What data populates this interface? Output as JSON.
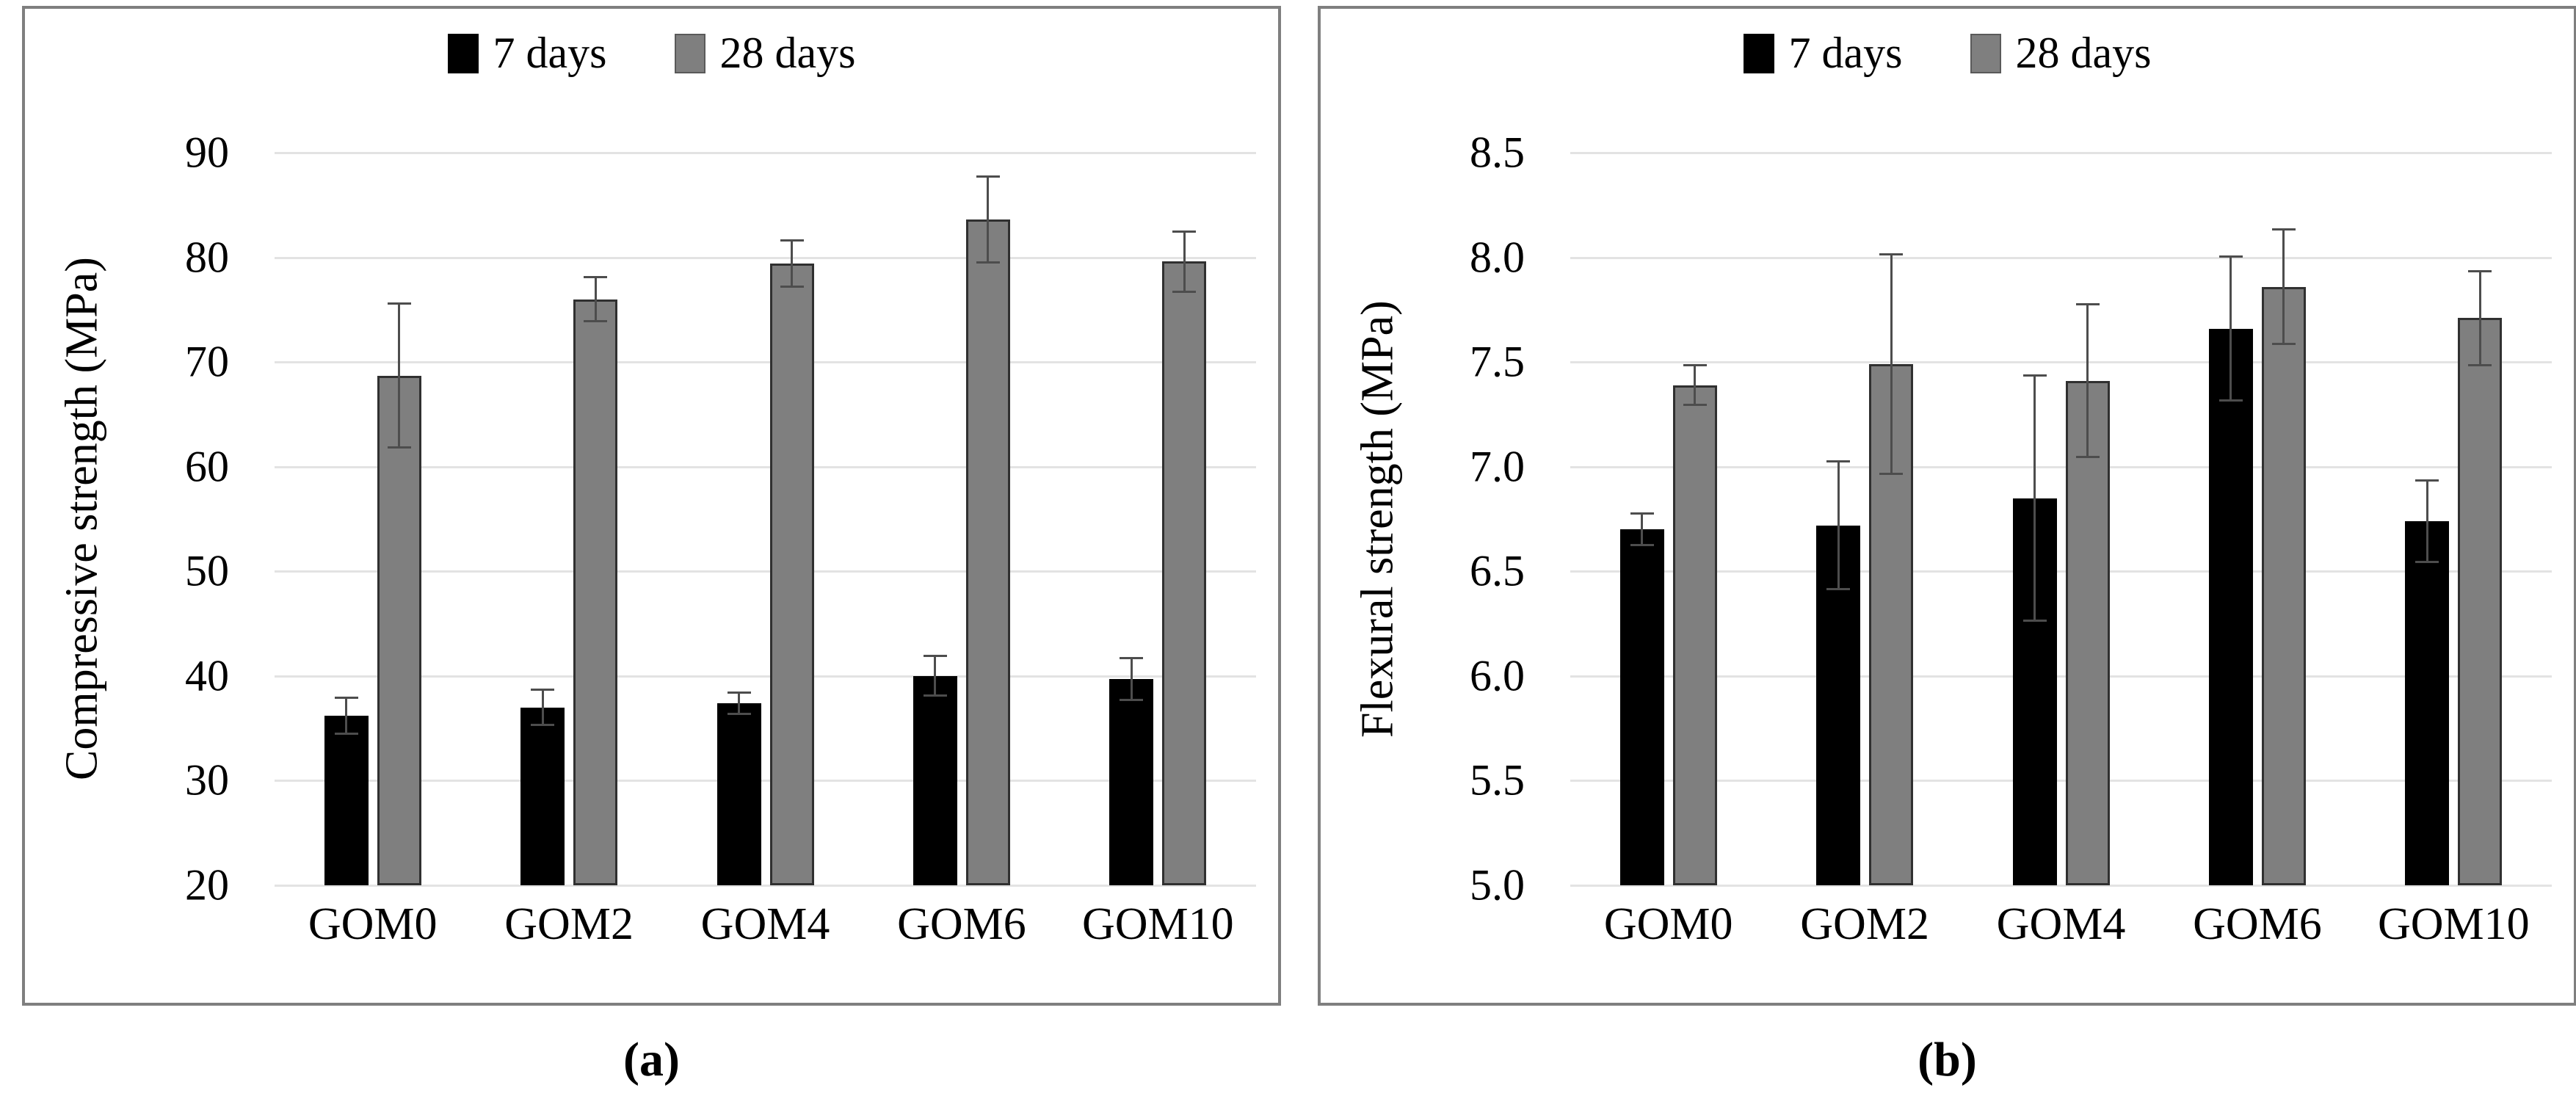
{
  "figure": {
    "background": "#ffffff",
    "panel_border_color": "#7f7f7f",
    "gridline_color": "#e3e3e3",
    "error_bar_color": "#4d4d4d"
  },
  "chart_data": [
    {
      "id": "a",
      "type": "bar",
      "caption": "(a)",
      "ylabel": "Compressive strength (MPa)",
      "xlabel": "",
      "ylim": [
        20,
        90
      ],
      "grid": true,
      "legend_position": "top",
      "categories": [
        "GOM0",
        "GOM2",
        "GOM4",
        "GOM6",
        "GOM10"
      ],
      "yticks": [
        {
          "value": 90,
          "label": "90"
        },
        {
          "value": 80,
          "label": "80"
        },
        {
          "value": 70,
          "label": "70"
        },
        {
          "value": 60,
          "label": "60"
        },
        {
          "value": 50,
          "label": "50"
        },
        {
          "value": 40,
          "label": "40"
        },
        {
          "value": 30,
          "label": "30"
        },
        {
          "value": 20,
          "label": "20"
        }
      ],
      "series": [
        {
          "name": "7 days",
          "color": "#000000",
          "values": [
            36.2,
            37.0,
            37.4,
            40.0,
            39.7
          ],
          "errors": [
            1.8,
            1.8,
            1.1,
            2.0,
            2.1
          ]
        },
        {
          "name": "28 days",
          "color": "#7f7f7f",
          "values": [
            68.7,
            76.0,
            79.4,
            83.6,
            79.6
          ],
          "errors": [
            7.0,
            2.2,
            2.3,
            4.2,
            3.0
          ]
        }
      ]
    },
    {
      "id": "b",
      "type": "bar",
      "caption": "(b)",
      "ylabel": "Flexural strength (MPa)",
      "xlabel": "",
      "ylim": [
        5.0,
        8.5
      ],
      "grid": true,
      "legend_position": "top",
      "categories": [
        "GOM0",
        "GOM2",
        "GOM4",
        "GOM6",
        "GOM10"
      ],
      "yticks": [
        {
          "value": 8.5,
          "label": "8.5"
        },
        {
          "value": 8.0,
          "label": "8.0"
        },
        {
          "value": 7.5,
          "label": "7.5"
        },
        {
          "value": 7.0,
          "label": "7.0"
        },
        {
          "value": 6.5,
          "label": "6.5"
        },
        {
          "value": 6.0,
          "label": "6.0"
        },
        {
          "value": 5.5,
          "label": "5.5"
        },
        {
          "value": 5.0,
          "label": "5.0"
        }
      ],
      "series": [
        {
          "name": "7 days",
          "color": "#000000",
          "values": [
            6.7,
            6.72,
            6.85,
            7.66,
            6.74
          ],
          "errors": [
            0.08,
            0.31,
            0.59,
            0.35,
            0.2
          ]
        },
        {
          "name": "28 days",
          "color": "#7f7f7f",
          "values": [
            7.39,
            7.49,
            7.41,
            7.86,
            7.71
          ],
          "errors": [
            0.1,
            0.53,
            0.37,
            0.28,
            0.23
          ]
        }
      ]
    }
  ]
}
